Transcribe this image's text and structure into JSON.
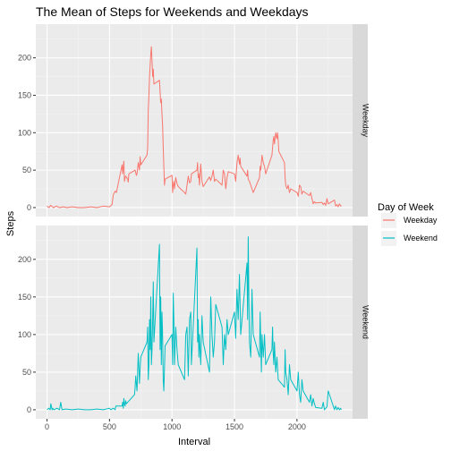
{
  "chart_data": {
    "type": "line",
    "title": "The Mean of Steps for Weekends and Weekdays",
    "xlabel": "Interval",
    "ylabel": "Steps",
    "xlim": [
      -90,
      2445
    ],
    "ylim": [
      -12,
      245
    ],
    "xticks": [
      0,
      500,
      1000,
      1500,
      2000
    ],
    "yticks": [
      0,
      50,
      100,
      150,
      200
    ],
    "grid": true,
    "facets": [
      "Weekday",
      "Weekend"
    ],
    "legend": {
      "title": "Day of Week",
      "position": "right",
      "entries": [
        "Weekday",
        "Weekend"
      ]
    },
    "colors": {
      "Weekday": "#F8766D",
      "Weekend": "#00BFC4"
    },
    "series": [
      {
        "name": "Weekday",
        "points": [
          [
            0,
            2
          ],
          [
            15,
            0
          ],
          [
            30,
            3
          ],
          [
            50,
            0
          ],
          [
            75,
            2
          ],
          [
            100,
            0
          ],
          [
            130,
            1
          ],
          [
            160,
            0
          ],
          [
            200,
            1
          ],
          [
            250,
            0
          ],
          [
            300,
            0
          ],
          [
            350,
            1
          ],
          [
            400,
            0
          ],
          [
            450,
            2
          ],
          [
            500,
            1
          ],
          [
            520,
            4
          ],
          [
            530,
            17
          ],
          [
            545,
            22
          ],
          [
            555,
            20
          ],
          [
            600,
            57
          ],
          [
            605,
            45
          ],
          [
            610,
            55
          ],
          [
            615,
            62
          ],
          [
            620,
            35
          ],
          [
            625,
            40
          ],
          [
            630,
            42
          ],
          [
            645,
            38
          ],
          [
            650,
            34
          ],
          [
            655,
            45
          ],
          [
            705,
            50
          ],
          [
            715,
            43
          ],
          [
            720,
            45
          ],
          [
            730,
            60
          ],
          [
            740,
            50
          ],
          [
            745,
            68
          ],
          [
            750,
            57
          ],
          [
            800,
            70
          ],
          [
            805,
            80
          ],
          [
            810,
            130
          ],
          [
            815,
            150
          ],
          [
            820,
            175
          ],
          [
            825,
            190
          ],
          [
            830,
            205
          ],
          [
            835,
            215
          ],
          [
            840,
            195
          ],
          [
            845,
            175
          ],
          [
            850,
            185
          ],
          [
            855,
            165
          ],
          [
            900,
            170
          ],
          [
            905,
            155
          ],
          [
            910,
            140
          ],
          [
            915,
            145
          ],
          [
            920,
            125
          ],
          [
            925,
            110
          ],
          [
            930,
            80
          ],
          [
            935,
            55
          ],
          [
            940,
            30
          ],
          [
            945,
            38
          ],
          [
            1000,
            43
          ],
          [
            1005,
            20
          ],
          [
            1010,
            30
          ],
          [
            1015,
            35
          ],
          [
            1020,
            25
          ],
          [
            1030,
            40
          ],
          [
            1040,
            32
          ],
          [
            1050,
            28
          ],
          [
            1100,
            20
          ],
          [
            1110,
            18
          ],
          [
            1120,
            30
          ],
          [
            1130,
            42
          ],
          [
            1140,
            33
          ],
          [
            1150,
            35
          ],
          [
            1155,
            45
          ],
          [
            1200,
            50
          ],
          [
            1205,
            60
          ],
          [
            1210,
            40
          ],
          [
            1215,
            45
          ],
          [
            1220,
            30
          ],
          [
            1230,
            58
          ],
          [
            1240,
            35
          ],
          [
            1250,
            28
          ],
          [
            1300,
            41
          ],
          [
            1310,
            36
          ],
          [
            1320,
            42
          ],
          [
            1330,
            50
          ],
          [
            1340,
            35
          ],
          [
            1350,
            38
          ],
          [
            1400,
            30
          ],
          [
            1410,
            50
          ],
          [
            1420,
            45
          ],
          [
            1430,
            25
          ],
          [
            1440,
            40
          ],
          [
            1450,
            48
          ],
          [
            1500,
            45
          ],
          [
            1510,
            35
          ],
          [
            1520,
            60
          ],
          [
            1530,
            70
          ],
          [
            1540,
            58
          ],
          [
            1545,
            66
          ],
          [
            1550,
            55
          ],
          [
            1600,
            42
          ],
          [
            1605,
            50
          ],
          [
            1610,
            38
          ],
          [
            1620,
            35
          ],
          [
            1630,
            30
          ],
          [
            1640,
            25
          ],
          [
            1650,
            20
          ],
          [
            1700,
            40
          ],
          [
            1705,
            55
          ],
          [
            1710,
            50
          ],
          [
            1715,
            60
          ],
          [
            1720,
            70
          ],
          [
            1730,
            60
          ],
          [
            1740,
            55
          ],
          [
            1750,
            45
          ],
          [
            1800,
            70
          ],
          [
            1805,
            80
          ],
          [
            1810,
            90
          ],
          [
            1815,
            95
          ],
          [
            1820,
            85
          ],
          [
            1830,
            100
          ],
          [
            1835,
            95
          ],
          [
            1840,
            92
          ],
          [
            1845,
            100
          ],
          [
            1850,
            90
          ],
          [
            1855,
            75
          ],
          [
            1900,
            60
          ],
          [
            1905,
            40
          ],
          [
            1910,
            30
          ],
          [
            1920,
            25
          ],
          [
            1930,
            30
          ],
          [
            1940,
            20
          ],
          [
            1950,
            25
          ],
          [
            2000,
            20
          ],
          [
            2010,
            15
          ],
          [
            2020,
            30
          ],
          [
            2030,
            28
          ],
          [
            2040,
            18
          ],
          [
            2050,
            22
          ],
          [
            2100,
            16
          ],
          [
            2110,
            20
          ],
          [
            2120,
            12
          ],
          [
            2130,
            5
          ],
          [
            2140,
            8
          ],
          [
            2150,
            6
          ],
          [
            2200,
            7
          ],
          [
            2210,
            4
          ],
          [
            2220,
            6
          ],
          [
            2230,
            3
          ],
          [
            2240,
            12
          ],
          [
            2250,
            5
          ],
          [
            2300,
            10
          ],
          [
            2310,
            2
          ],
          [
            2320,
            4
          ],
          [
            2330,
            1
          ],
          [
            2340,
            5
          ],
          [
            2350,
            2
          ],
          [
            2355,
            3
          ]
        ]
      },
      {
        "name": "Weekend",
        "points": [
          [
            0,
            0
          ],
          [
            15,
            2
          ],
          [
            25,
            0
          ],
          [
            30,
            8
          ],
          [
            40,
            0
          ],
          [
            45,
            2
          ],
          [
            55,
            0
          ],
          [
            80,
            2
          ],
          [
            100,
            0
          ],
          [
            110,
            10
          ],
          [
            120,
            0
          ],
          [
            150,
            1
          ],
          [
            200,
            0
          ],
          [
            250,
            1
          ],
          [
            300,
            0
          ],
          [
            350,
            0
          ],
          [
            400,
            1
          ],
          [
            450,
            0
          ],
          [
            500,
            2
          ],
          [
            510,
            0
          ],
          [
            530,
            2
          ],
          [
            545,
            0
          ],
          [
            550,
            5
          ],
          [
            600,
            5
          ],
          [
            605,
            10
          ],
          [
            610,
            2
          ],
          [
            615,
            15
          ],
          [
            620,
            8
          ],
          [
            625,
            5
          ],
          [
            630,
            12
          ],
          [
            635,
            8
          ],
          [
            700,
            20
          ],
          [
            705,
            30
          ],
          [
            710,
            45
          ],
          [
            715,
            35
          ],
          [
            720,
            25
          ],
          [
            730,
            75
          ],
          [
            740,
            35
          ],
          [
            745,
            55
          ],
          [
            750,
            70
          ],
          [
            800,
            90
          ],
          [
            805,
            110
          ],
          [
            810,
            40
          ],
          [
            815,
            60
          ],
          [
            820,
            120
          ],
          [
            825,
            80
          ],
          [
            830,
            150
          ],
          [
            835,
            60
          ],
          [
            840,
            80
          ],
          [
            845,
            120
          ],
          [
            850,
            170
          ],
          [
            855,
            90
          ],
          [
            900,
            220
          ],
          [
            905,
            80
          ],
          [
            910,
            150
          ],
          [
            915,
            60
          ],
          [
            920,
            130
          ],
          [
            925,
            100
          ],
          [
            930,
            40
          ],
          [
            935,
            25
          ],
          [
            940,
            55
          ],
          [
            945,
            85
          ],
          [
            1000,
            100
          ],
          [
            1005,
            60
          ],
          [
            1010,
            155
          ],
          [
            1015,
            120
          ],
          [
            1020,
            60
          ],
          [
            1030,
            110
          ],
          [
            1040,
            80
          ],
          [
            1050,
            60
          ],
          [
            1100,
            40
          ],
          [
            1110,
            100
          ],
          [
            1120,
            110
          ],
          [
            1130,
            45
          ],
          [
            1140,
            120
          ],
          [
            1150,
            130
          ],
          [
            1155,
            60
          ],
          [
            1200,
            215
          ],
          [
            1205,
            90
          ],
          [
            1210,
            120
          ],
          [
            1215,
            70
          ],
          [
            1220,
            100
          ],
          [
            1230,
            60
          ],
          [
            1240,
            125
          ],
          [
            1250,
            90
          ],
          [
            1300,
            50
          ],
          [
            1310,
            150
          ],
          [
            1320,
            100
          ],
          [
            1330,
            70
          ],
          [
            1340,
            90
          ],
          [
            1350,
            140
          ],
          [
            1400,
            110
          ],
          [
            1410,
            60
          ],
          [
            1420,
            100
          ],
          [
            1430,
            80
          ],
          [
            1440,
            120
          ],
          [
            1450,
            100
          ],
          [
            1500,
            130
          ],
          [
            1510,
            95
          ],
          [
            1520,
            160
          ],
          [
            1530,
            120
          ],
          [
            1540,
            180
          ],
          [
            1545,
            140
          ],
          [
            1550,
            100
          ],
          [
            1600,
            195
          ],
          [
            1605,
            120
          ],
          [
            1610,
            230
          ],
          [
            1615,
            150
          ],
          [
            1620,
            90
          ],
          [
            1630,
            70
          ],
          [
            1640,
            160
          ],
          [
            1650,
            100
          ],
          [
            1700,
            70
          ],
          [
            1705,
            130
          ],
          [
            1710,
            90
          ],
          [
            1715,
            50
          ],
          [
            1720,
            100
          ],
          [
            1730,
            70
          ],
          [
            1740,
            100
          ],
          [
            1750,
            60
          ],
          [
            1800,
            80
          ],
          [
            1805,
            110
          ],
          [
            1810,
            75
          ],
          [
            1815,
            60
          ],
          [
            1820,
            90
          ],
          [
            1830,
            50
          ],
          [
            1840,
            70
          ],
          [
            1850,
            40
          ],
          [
            1900,
            30
          ],
          [
            1905,
            80
          ],
          [
            1910,
            50
          ],
          [
            1920,
            40
          ],
          [
            1930,
            20
          ],
          [
            1940,
            60
          ],
          [
            1950,
            40
          ],
          [
            2000,
            25
          ],
          [
            2010,
            50
          ],
          [
            2020,
            20
          ],
          [
            2030,
            10
          ],
          [
            2040,
            40
          ],
          [
            2050,
            25
          ],
          [
            2100,
            10
          ],
          [
            2110,
            20
          ],
          [
            2120,
            5
          ],
          [
            2130,
            15
          ],
          [
            2140,
            8
          ],
          [
            2150,
            3
          ],
          [
            2200,
            2
          ],
          [
            2210,
            10
          ],
          [
            2220,
            0
          ],
          [
            2230,
            2
          ],
          [
            2240,
            4
          ],
          [
            2250,
            25
          ],
          [
            2300,
            0
          ],
          [
            2310,
            5
          ],
          [
            2320,
            0
          ],
          [
            2330,
            3
          ],
          [
            2340,
            0
          ],
          [
            2350,
            2
          ],
          [
            2355,
            0
          ]
        ]
      }
    ]
  }
}
